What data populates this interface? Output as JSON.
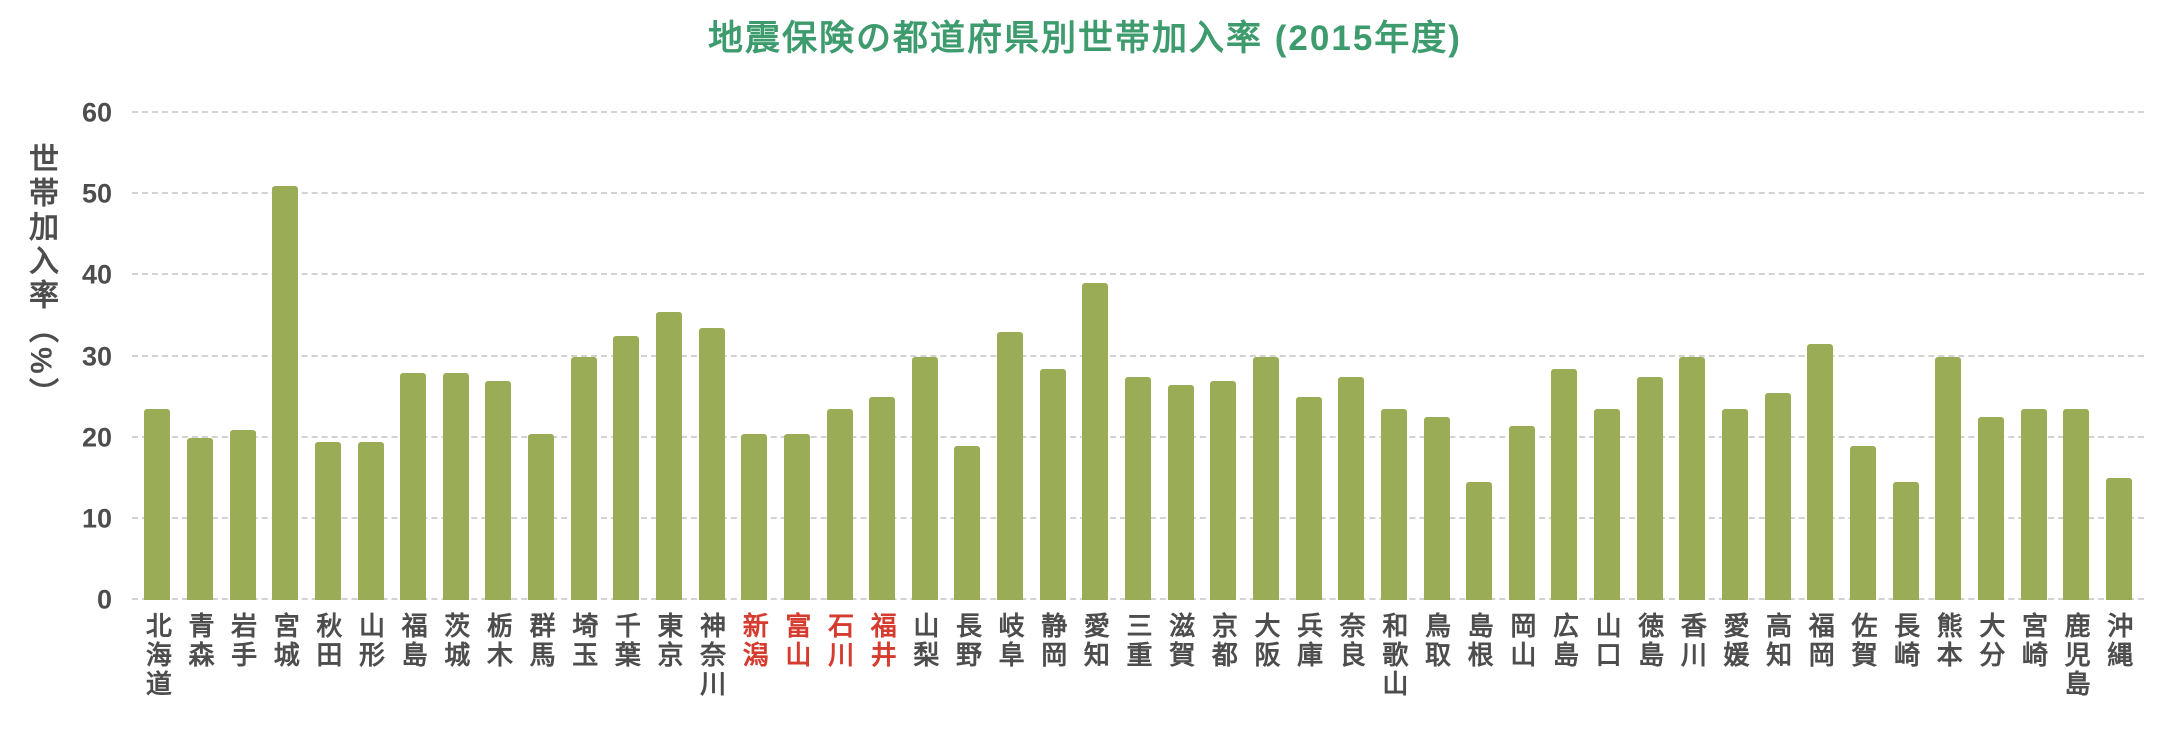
{
  "chart_data": {
    "type": "bar",
    "title": "地震保険の都道府県別世帯加入率 (2015年度)",
    "ylabel": "世帯加入率（%）",
    "xlabel": "",
    "ylim": [
      0,
      60
    ],
    "yticks": [
      0,
      10,
      20,
      30,
      40,
      50,
      60
    ],
    "grid": "horizontal-dashed",
    "legend": "none",
    "bar_color": "#9aad56",
    "title_color": "#3d9b6e",
    "axis_text_color": "#4d4d4d",
    "highlight_color": "#d63b2f",
    "highlighted_categories": [
      "新潟",
      "富山",
      "石川",
      "福井"
    ],
    "categories": [
      "北海道",
      "青森",
      "岩手",
      "宮城",
      "秋田",
      "山形",
      "福島",
      "茨城",
      "栃木",
      "群馬",
      "埼玉",
      "千葉",
      "東京",
      "神奈川",
      "新潟",
      "富山",
      "石川",
      "福井",
      "山梨",
      "長野",
      "岐阜",
      "静岡",
      "愛知",
      "三重",
      "滋賀",
      "京都",
      "大阪",
      "兵庫",
      "奈良",
      "和歌山",
      "鳥取",
      "島根",
      "岡山",
      "広島",
      "山口",
      "徳島",
      "香川",
      "愛媛",
      "高知",
      "福岡",
      "佐賀",
      "長崎",
      "熊本",
      "大分",
      "宮崎",
      "鹿児島",
      "沖縄"
    ],
    "values": [
      23.5,
      20,
      21,
      51,
      19.5,
      19.5,
      28,
      28,
      27,
      20.5,
      30,
      32.5,
      35.5,
      33.5,
      20.5,
      20.5,
      23.5,
      25,
      30,
      19,
      33,
      28.5,
      39,
      27.5,
      26.5,
      27,
      30,
      25,
      27.5,
      23.5,
      22.5,
      14.5,
      21.5,
      28.5,
      23.5,
      27.5,
      30,
      23.5,
      25.5,
      31.5,
      19,
      14.5,
      30,
      22.5,
      23.5,
      23.5,
      15
    ]
  }
}
